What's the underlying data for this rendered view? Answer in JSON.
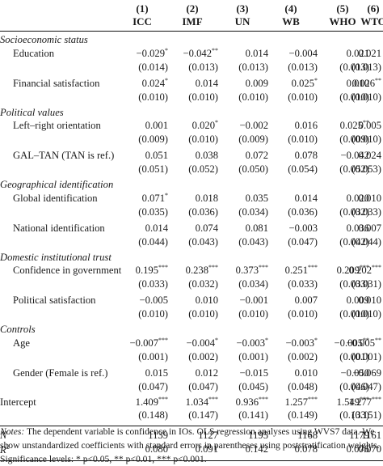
{
  "columns": [
    {
      "num": "(1)",
      "name": "ICC"
    },
    {
      "num": "(2)",
      "name": "IMF"
    },
    {
      "num": "(3)",
      "name": "UN"
    },
    {
      "num": "(4)",
      "name": "WB"
    },
    {
      "num": "(5)",
      "name": "WHO"
    },
    {
      "num": "(6)",
      "name": "WTO"
    }
  ],
  "sections": [
    {
      "title": "Socioeconomic status",
      "rows": [
        {
          "label": "Education",
          "coef": [
            "−0.029",
            "−0.042",
            "0.014",
            "−0.004",
            "0.021",
            "0.021"
          ],
          "stars": [
            "*",
            "**",
            "",
            "",
            "",
            ""
          ],
          "se": [
            "(0.014)",
            "(0.013)",
            "(0.013)",
            "(0.013)",
            "(0.013)",
            "(0.013)"
          ]
        },
        {
          "label": "Financial satisfaction",
          "coef": [
            "0.024",
            "0.014",
            "0.009",
            "0.025",
            "0.010",
            "0.026"
          ],
          "stars": [
            "*",
            "",
            "",
            "*",
            "",
            "**"
          ],
          "se": [
            "(0.010)",
            "(0.010)",
            "(0.010)",
            "(0.010)",
            "(0.010)",
            "(0.010)"
          ]
        }
      ]
    },
    {
      "title": "Political values",
      "rows": [
        {
          "label": "Left–right orientation",
          "coef": [
            "0.001",
            "0.020",
            "−0.002",
            "0.016",
            "0.025",
            "0.005"
          ],
          "stars": [
            "",
            "*",
            "",
            "",
            "**",
            ""
          ],
          "se": [
            "(0.009)",
            "(0.010)",
            "(0.009)",
            "(0.010)",
            "(0.009)",
            "(0.010)"
          ]
        },
        {
          "label": "GAL–TAN (TAN is ref.)",
          "coef": [
            "0.051",
            "0.038",
            "0.072",
            "0.078",
            "−0.042",
            "0.024"
          ],
          "stars": [
            "",
            "",
            "",
            "",
            "",
            ""
          ],
          "se": [
            "(0.051)",
            "(0.052)",
            "(0.050)",
            "(0.054)",
            "(0.052)",
            "(0.053)"
          ]
        }
      ]
    },
    {
      "title": "Geographical identification",
      "rows": [
        {
          "label": "Global identification",
          "coef": [
            "0.071",
            "0.018",
            "0.035",
            "0.014",
            "0.020",
            "0.010"
          ],
          "stars": [
            "*",
            "",
            "",
            "",
            "",
            ""
          ],
          "se": [
            "(0.035)",
            "(0.036)",
            "(0.034)",
            "(0.036)",
            "(0.032)",
            "(0.033)"
          ]
        },
        {
          "label": "National identification",
          "coef": [
            "0.014",
            "0.074",
            "0.081",
            "−0.003",
            "0.036",
            "0.007"
          ],
          "stars": [
            "",
            "",
            "",
            "",
            "",
            ""
          ],
          "se": [
            "(0.044)",
            "(0.043)",
            "(0.043)",
            "(0.047)",
            "(0.042)",
            "(0.044)"
          ]
        }
      ]
    },
    {
      "title": "Domestic institutional trust",
      "rows": [
        {
          "label": "Confidence in government",
          "coef": [
            "0.195",
            "0.238",
            "0.373",
            "0.251",
            "0.209",
            "0.202"
          ],
          "stars": [
            "***",
            "***",
            "***",
            "***",
            "***",
            "***"
          ],
          "se": [
            "(0.033)",
            "(0.032)",
            "(0.034)",
            "(0.033)",
            "(0.033)",
            "(0.031)"
          ]
        },
        {
          "label": "Political satisfaction",
          "coef": [
            "−0.005",
            "0.010",
            "−0.001",
            "0.007",
            "0.009",
            "0.010"
          ],
          "stars": [
            "",
            "",
            "",
            "",
            "",
            ""
          ],
          "se": [
            "(0.010)",
            "(0.010)",
            "(0.010)",
            "(0.010)",
            "(0.010)",
            "(0.010)"
          ]
        }
      ]
    },
    {
      "title": "Controls",
      "rows": [
        {
          "label": "Age",
          "coef": [
            "−0.007",
            "−0.004",
            "−0.003",
            "−0.003",
            "−0.005",
            "−0.005"
          ],
          "stars": [
            "***",
            "*",
            "*",
            "*",
            "**",
            "**"
          ],
          "se": [
            "(0.001)",
            "(0.002)",
            "(0.001)",
            "(0.002)",
            "(0.001)",
            "(0.001)"
          ]
        },
        {
          "label": "Gender (Female is ref.)",
          "coef": [
            "0.015",
            "0.012",
            "−0.015",
            "0.010",
            "−0.050",
            "−0.069"
          ],
          "stars": [
            "",
            "",
            "",
            "",
            "",
            ""
          ],
          "se": [
            "(0.047)",
            "(0.047)",
            "(0.045)",
            "(0.048)",
            "(0.046)",
            "(0.047)"
          ]
        }
      ]
    }
  ],
  "intercept": {
    "label": "Intercept",
    "coef": [
      "1.409",
      "1.034",
      "0.936",
      "1.257",
      "1.549",
      "1.277"
    ],
    "stars": [
      "***",
      "***",
      "***",
      "***",
      "***",
      "***"
    ],
    "se": [
      "(0.148)",
      "(0.147)",
      "(0.141)",
      "(0.149)",
      "(0.133)",
      "(0.151)"
    ]
  },
  "stats": {
    "n_label": "N",
    "n": [
      "1139",
      "1127",
      "1195",
      "1168",
      "1179",
      "1161"
    ],
    "r2_label": "R",
    "r2_sup": "2",
    "r2": [
      "0.080",
      "0.091",
      "0.142",
      "0.078",
      "0.076",
      "0.070"
    ]
  },
  "notes": {
    "lead": "Notes:",
    "text": " The dependent variable is confidence in IOs. OLS regression analyses using WVS7 data. We show unstandardized coefficients with standard errors in parentheses using poststratification weights. Significance levels: * p<0.05, ** p<0.01, *** p<0.001."
  }
}
